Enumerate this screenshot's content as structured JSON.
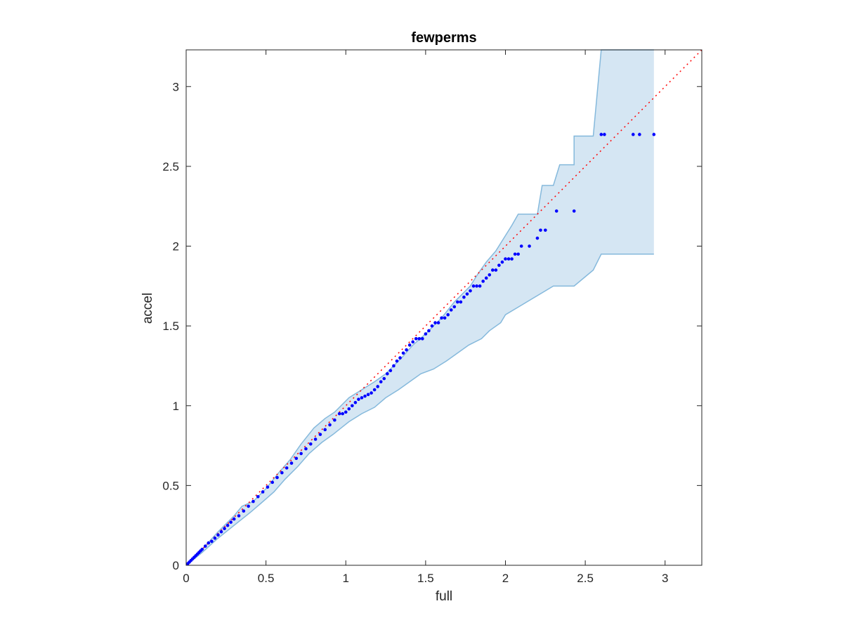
{
  "chart_data": {
    "type": "scatter",
    "title": "fewperms",
    "xlabel": "full",
    "ylabel": "accel",
    "xlim": [
      0,
      3.23
    ],
    "ylim": [
      0,
      3.23
    ],
    "xticks": [
      0,
      0.5,
      1,
      1.5,
      2,
      2.5,
      3
    ],
    "yticks": [
      0,
      0.5,
      1,
      1.5,
      2,
      2.5,
      3
    ],
    "xtick_labels": [
      "0",
      "0.5",
      "1",
      "1.5",
      "2",
      "2.5",
      "3"
    ],
    "ytick_labels": [
      "0",
      "0.5",
      "1",
      "1.5",
      "2",
      "2.5",
      "3"
    ],
    "grid": false,
    "colors": {
      "points": "#0000ff",
      "reference": "#ff0000",
      "band_fill": "#d5e6f3",
      "band_edge": "#85b9dc",
      "axes": "#262626"
    },
    "reference_line": {
      "style": "dotted",
      "from": [
        0,
        0
      ],
      "to": [
        3.23,
        3.23
      ]
    },
    "band": {
      "upper": [
        [
          0,
          0
        ],
        [
          0.1,
          0.1
        ],
        [
          0.2,
          0.21
        ],
        [
          0.3,
          0.31
        ],
        [
          0.35,
          0.37
        ],
        [
          0.42,
          0.4
        ],
        [
          0.5,
          0.48
        ],
        [
          0.58,
          0.58
        ],
        [
          0.65,
          0.66
        ],
        [
          0.72,
          0.76
        ],
        [
          0.8,
          0.86
        ],
        [
          0.87,
          0.92
        ],
        [
          0.93,
          0.96
        ],
        [
          0.97,
          1.0
        ],
        [
          1.02,
          1.05
        ],
        [
          1.1,
          1.1
        ],
        [
          1.18,
          1.15
        ],
        [
          1.25,
          1.2
        ],
        [
          1.3,
          1.25
        ],
        [
          1.35,
          1.3
        ],
        [
          1.42,
          1.38
        ],
        [
          1.5,
          1.45
        ],
        [
          1.55,
          1.5
        ],
        [
          1.6,
          1.55
        ],
        [
          1.68,
          1.65
        ],
        [
          1.73,
          1.7
        ],
        [
          1.78,
          1.75
        ],
        [
          1.83,
          1.83
        ],
        [
          1.88,
          1.9
        ],
        [
          1.94,
          1.97
        ],
        [
          1.99,
          2.05
        ],
        [
          2.04,
          2.13
        ],
        [
          2.08,
          2.2
        ],
        [
          2.2,
          2.2
        ],
        [
          2.23,
          2.38
        ],
        [
          2.3,
          2.38
        ],
        [
          2.34,
          2.51
        ],
        [
          2.43,
          2.51
        ],
        [
          2.43,
          2.69
        ],
        [
          2.55,
          2.69
        ],
        [
          2.6,
          3.23
        ],
        [
          2.93,
          3.23
        ]
      ],
      "lower": [
        [
          0,
          0
        ],
        [
          0.1,
          0.08
        ],
        [
          0.2,
          0.17
        ],
        [
          0.3,
          0.25
        ],
        [
          0.4,
          0.33
        ],
        [
          0.47,
          0.39
        ],
        [
          0.55,
          0.46
        ],
        [
          0.62,
          0.54
        ],
        [
          0.7,
          0.62
        ],
        [
          0.77,
          0.7
        ],
        [
          0.85,
          0.77
        ],
        [
          0.92,
          0.82
        ],
        [
          0.97,
          0.86
        ],
        [
          1.02,
          0.9
        ],
        [
          1.1,
          0.95
        ],
        [
          1.18,
          0.99
        ],
        [
          1.25,
          1.05
        ],
        [
          1.33,
          1.1
        ],
        [
          1.4,
          1.15
        ],
        [
          1.47,
          1.2
        ],
        [
          1.55,
          1.23
        ],
        [
          1.63,
          1.28
        ],
        [
          1.7,
          1.33
        ],
        [
          1.77,
          1.38
        ],
        [
          1.85,
          1.42
        ],
        [
          1.9,
          1.47
        ],
        [
          1.97,
          1.52
        ],
        [
          2.0,
          1.57
        ],
        [
          2.1,
          1.63
        ],
        [
          2.2,
          1.69
        ],
        [
          2.3,
          1.75
        ],
        [
          2.43,
          1.75
        ],
        [
          2.55,
          1.85
        ],
        [
          2.6,
          1.95
        ],
        [
          2.93,
          1.95
        ]
      ]
    },
    "series": [
      {
        "x": [
          0.01,
          0.02,
          0.03,
          0.04,
          0.05,
          0.06,
          0.07,
          0.08,
          0.09,
          0.1,
          0.12,
          0.14,
          0.16,
          0.18,
          0.2,
          0.22,
          0.24,
          0.26,
          0.28,
          0.3,
          0.33,
          0.36,
          0.39,
          0.42,
          0.45,
          0.48,
          0.51,
          0.54,
          0.57,
          0.6,
          0.63,
          0.66,
          0.69,
          0.72,
          0.75,
          0.78,
          0.81,
          0.84,
          0.87,
          0.9,
          0.93,
          0.96,
          0.98,
          1.0,
          1.02,
          1.04,
          1.06,
          1.08,
          1.1,
          1.12,
          1.14,
          1.16,
          1.18,
          1.2,
          1.22,
          1.24,
          1.26,
          1.28,
          1.3,
          1.32,
          1.34,
          1.36,
          1.38,
          1.4,
          1.42,
          1.44,
          1.46,
          1.48,
          1.5,
          1.52,
          1.54,
          1.56,
          1.58,
          1.6,
          1.62,
          1.64,
          1.66,
          1.68,
          1.7,
          1.72,
          1.74,
          1.76,
          1.78,
          1.8,
          1.82,
          1.84,
          1.86,
          1.88,
          1.9,
          1.92,
          1.94,
          1.96,
          1.98,
          2.0,
          2.02,
          2.04,
          2.06,
          2.08,
          2.1,
          2.15,
          2.2,
          2.22,
          2.25,
          2.32,
          2.43,
          2.6,
          2.62,
          2.8,
          2.84,
          2.93
        ],
        "y": [
          0.01,
          0.02,
          0.03,
          0.04,
          0.05,
          0.06,
          0.07,
          0.08,
          0.09,
          0.1,
          0.12,
          0.14,
          0.15,
          0.17,
          0.19,
          0.21,
          0.23,
          0.25,
          0.27,
          0.29,
          0.31,
          0.34,
          0.37,
          0.4,
          0.43,
          0.46,
          0.49,
          0.52,
          0.55,
          0.58,
          0.61,
          0.64,
          0.67,
          0.7,
          0.73,
          0.76,
          0.79,
          0.82,
          0.85,
          0.88,
          0.91,
          0.95,
          0.95,
          0.96,
          0.98,
          1.0,
          1.02,
          1.04,
          1.05,
          1.06,
          1.07,
          1.08,
          1.1,
          1.12,
          1.15,
          1.17,
          1.2,
          1.22,
          1.25,
          1.28,
          1.3,
          1.33,
          1.35,
          1.38,
          1.4,
          1.42,
          1.42,
          1.42,
          1.45,
          1.47,
          1.5,
          1.52,
          1.52,
          1.55,
          1.55,
          1.57,
          1.6,
          1.62,
          1.65,
          1.65,
          1.68,
          1.7,
          1.72,
          1.75,
          1.75,
          1.75,
          1.78,
          1.8,
          1.82,
          1.85,
          1.85,
          1.88,
          1.9,
          1.92,
          1.92,
          1.92,
          1.95,
          1.95,
          2.0,
          2.0,
          2.05,
          2.1,
          2.1,
          2.22,
          2.22,
          2.7,
          2.7,
          2.7,
          2.7,
          2.7
        ]
      }
    ]
  }
}
